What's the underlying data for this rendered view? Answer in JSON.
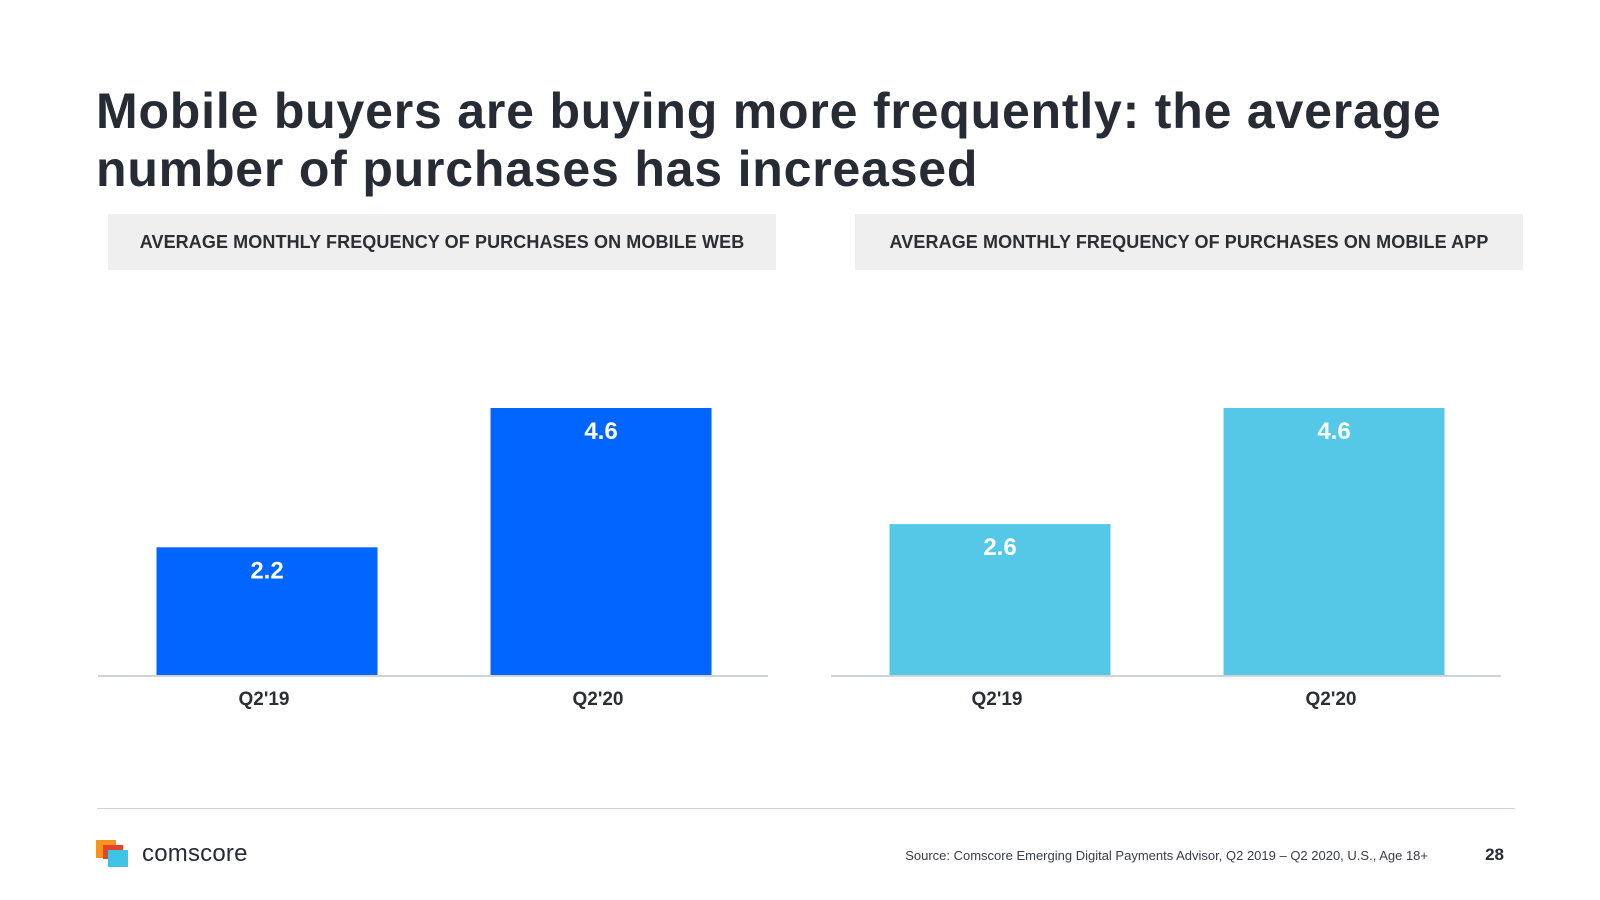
{
  "slide": {
    "title": "Mobile buyers are buying more frequently: the average number of purchases has increased"
  },
  "chart_data": [
    {
      "type": "bar",
      "title": "AVERAGE MONTHLY FREQUENCY OF PURCHASES ON MOBILE WEB",
      "categories": [
        "Q2'19",
        "Q2'20"
      ],
      "values": [
        2.2,
        4.6
      ],
      "data_labels": [
        "2.2",
        "4.6"
      ],
      "color": "#0066ff",
      "xlabel": "",
      "ylabel": "",
      "ylim": [
        0,
        4.6
      ],
      "grid": false,
      "legend": "none"
    },
    {
      "type": "bar",
      "title": "AVERAGE MONTHLY FREQUENCY OF PURCHASES ON MOBILE APP",
      "categories": [
        "Q2'19",
        "Q2'20"
      ],
      "values": [
        2.6,
        4.6
      ],
      "data_labels": [
        "2.6",
        "4.6"
      ],
      "color": "#55c8e8",
      "xlabel": "",
      "ylabel": "",
      "ylim": [
        0,
        4.6
      ],
      "grid": false,
      "legend": "none"
    }
  ],
  "footer": {
    "brand": "comscore",
    "source": "Source: Comscore Emerging Digital Payments Advisor, Q2 2019 – Q2 2020, U.S., Age 18+",
    "page_number": "28"
  },
  "colors": {
    "axis": "#cfd2d6",
    "logo_orange": "#f7931e",
    "logo_red": "#e8412c",
    "logo_blue": "#3cc3e6"
  }
}
